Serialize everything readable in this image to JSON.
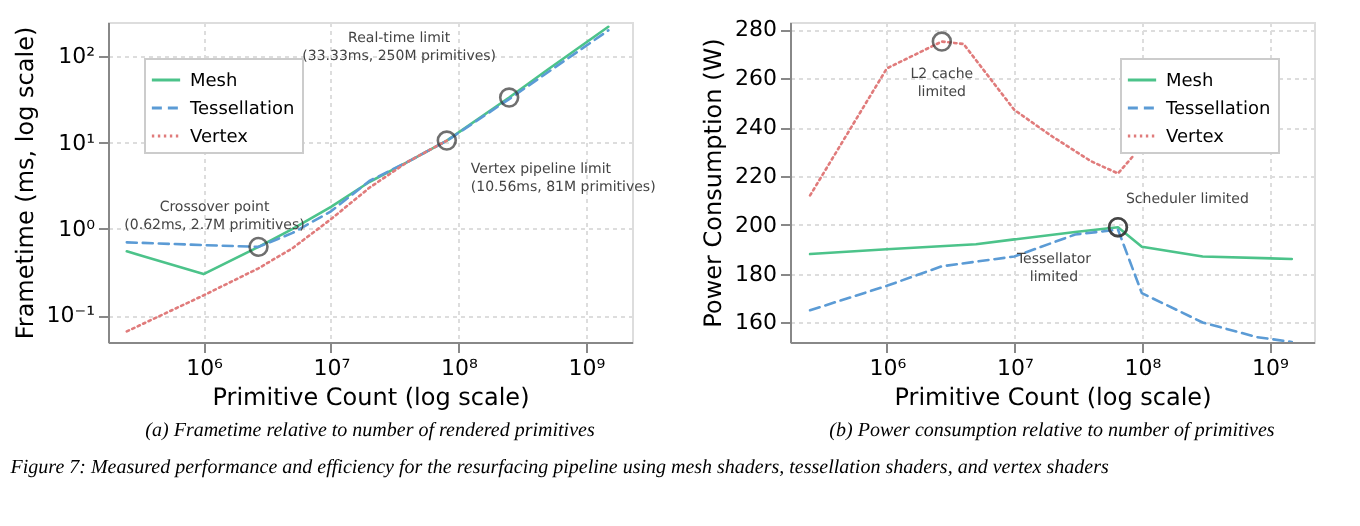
{
  "chart_data": [
    {
      "type": "line",
      "subtitle": "(a) Frametime relative to number of rendered primitives",
      "xlabel": "Primitive Count (log scale)",
      "ylabel": "Frametime (ms, log scale)",
      "log": "xy",
      "xlim": [
        178000,
        2300000000
      ],
      "ylim": [
        0.049,
        250
      ],
      "xticks": [
        {
          "value": 1000000,
          "label": "10⁶"
        },
        {
          "value": 10000000,
          "label": "10⁷"
        },
        {
          "value": 100000000,
          "label": "10⁸"
        },
        {
          "value": 1000000000,
          "label": "10⁹"
        }
      ],
      "yticks": [
        {
          "value": 0.1,
          "label": "10⁻¹"
        },
        {
          "value": 1,
          "label": "10⁰"
        },
        {
          "value": 10,
          "label": "10¹"
        },
        {
          "value": 100,
          "label": "10²"
        }
      ],
      "grid": true,
      "legend": "top left",
      "series": [
        {
          "name": "Mesh",
          "color": "#4cc38a",
          "line_style": "solid",
          "x": [
            250000,
            1000000,
            2700000,
            5000000,
            10000000,
            20000000,
            40000000,
            81000000,
            250000000,
            500000000,
            1500000000
          ],
          "values": [
            0.55,
            0.3,
            0.62,
            1.0,
            1.8,
            3.5,
            6,
            10.56,
            33.33,
            70,
            220
          ]
        },
        {
          "name": "Tessellation",
          "color": "#5b9bd5",
          "line_style": "dashed",
          "x": [
            250000,
            1000000,
            2700000,
            5000000,
            10000000,
            20000000,
            40000000,
            81000000,
            250000000,
            500000000,
            1500000000
          ],
          "values": [
            0.7,
            0.65,
            0.62,
            0.9,
            1.6,
            3.6,
            6,
            10.5,
            32,
            65,
            200
          ]
        },
        {
          "name": "Vertex",
          "color": "#e07b7b",
          "line_style": "dotted",
          "x": [
            250000,
            1000000,
            2700000,
            5000000,
            10000000,
            20000000,
            40000000,
            81000000
          ],
          "values": [
            0.065,
            0.17,
            0.35,
            0.6,
            1.3,
            3,
            6,
            10.56
          ]
        }
      ],
      "annotations": [
        {
          "text": "Crossover point\n(0.62ms, 2.7M primitives)",
          "x": 2700000,
          "y": 0.62
        },
        {
          "text": "Real-time limit\n(33.33ms, 250M primitives)",
          "x": 250000000,
          "y": 33.33
        },
        {
          "text": "Vertex pipeline limit\n(10.56ms, 81M primitives)",
          "x": 81000000,
          "y": 10.56
        },
        "Figure 7: Measured performance and efficiency for the resurfacing pipeline using mesh shaders, tessellation shaders, and vertex shaders"
      ]
    },
    {
      "type": "line",
      "subtitle": "(b) Power consumption relative to number of primitives",
      "xlabel": "Primitive Count (log scale)",
      "ylabel": "Power Consumption (W)",
      "log": "x",
      "xlim": [
        174000,
        2240000000
      ],
      "ylim": [
        152,
        283
      ],
      "xticks": [
        {
          "value": 1000000,
          "label": "10⁶"
        },
        {
          "value": 10000000,
          "label": "10⁷"
        },
        {
          "value": 100000000,
          "label": "10⁸"
        },
        {
          "value": 1000000000,
          "label": "10⁹"
        }
      ],
      "yticks": [
        160,
        180,
        200,
        220,
        240,
        260,
        280
      ],
      "grid": true,
      "legend": "top right",
      "series": [
        {
          "name": "Mesh",
          "color": "#4cc38a",
          "line_style": "solid",
          "x": [
            250000,
            1000000,
            5000000,
            10000000,
            30000000,
            65000000,
            100000000,
            300000000,
            1500000000
          ],
          "values": [
            188,
            190,
            192,
            194,
            197,
            199,
            191,
            187,
            186
          ]
        },
        {
          "name": "Tessellation",
          "color": "#5b9bd5",
          "line_style": "dashed",
          "x": [
            250000,
            1000000,
            2700000,
            10000000,
            30000000,
            65000000,
            100000000,
            300000000,
            800000000,
            1500000000
          ],
          "values": [
            165,
            175,
            183,
            187,
            196,
            198,
            172,
            160,
            154,
            152
          ]
        },
        {
          "name": "Vertex",
          "color": "#e07b7b",
          "line_style": "dotted",
          "x": [
            250000,
            1000000,
            2700000,
            4000000,
            10000000,
            20000000,
            40000000,
            65000000,
            85000000
          ],
          "values": [
            212,
            264,
            275,
            274,
            247,
            236,
            226,
            221,
            228
          ]
        }
      ],
      "annotations": [
        {
          "text": "L2 cache\nlimited",
          "x": 2700000,
          "y": 275
        },
        {
          "text": "Scheduler limited",
          "x": 65000000,
          "y": 199
        },
        {
          "text": "Tessellator\nlimited",
          "x": 65000000,
          "y": 199
        }
      ]
    }
  ]
}
